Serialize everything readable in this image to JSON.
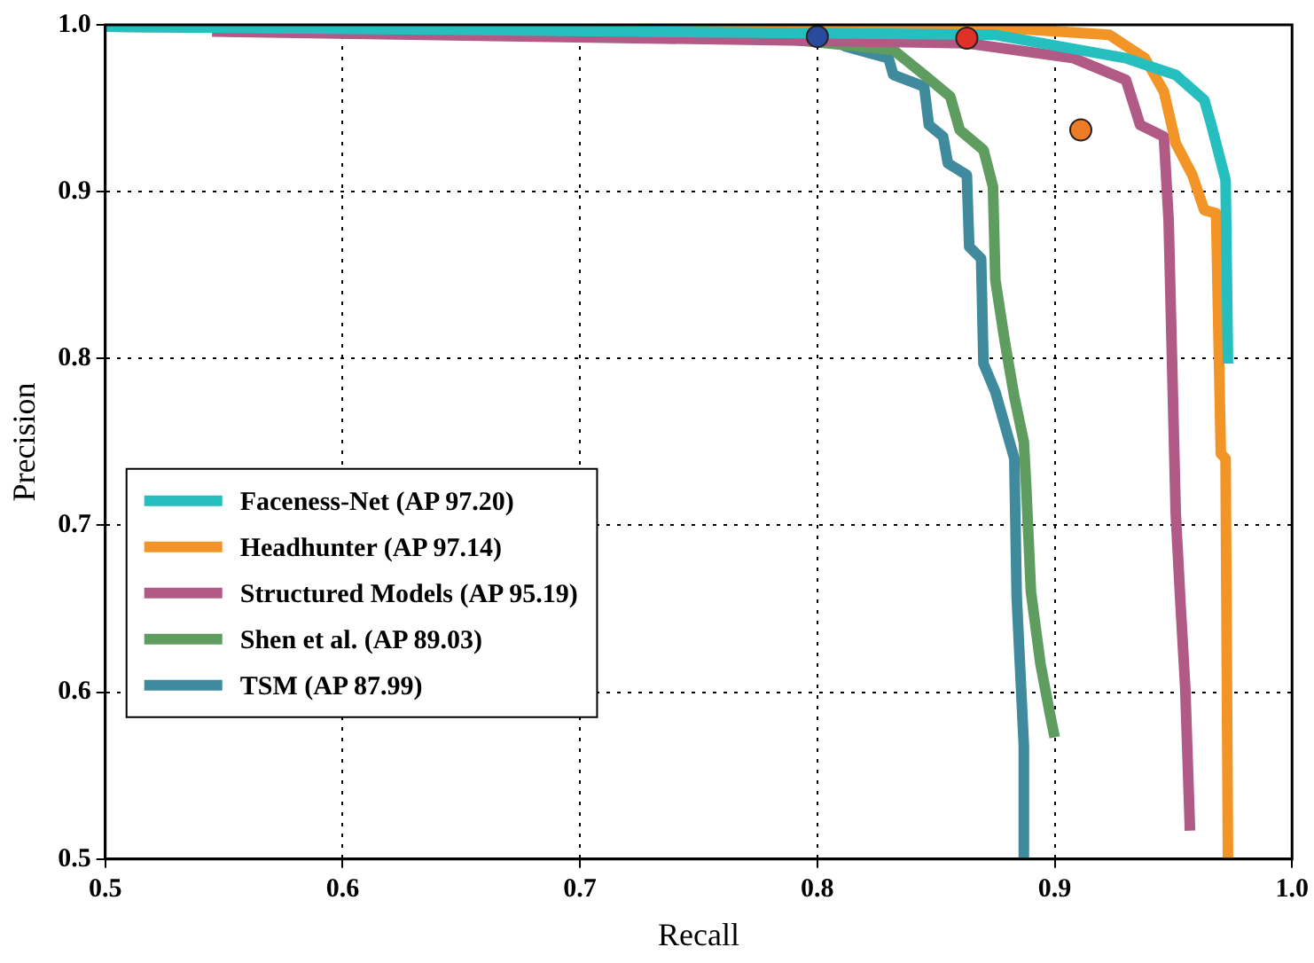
{
  "chart_data": {
    "type": "line",
    "xlabel": "Recall",
    "ylabel": "Precision",
    "xlim": [
      0.5,
      1.0
    ],
    "ylim": [
      0.5,
      1.0
    ],
    "xticks": [
      0.5,
      0.6,
      0.7,
      0.8,
      0.9,
      {
        "value": 1.0,
        "label": "1.0"
      }
    ],
    "yticks": [
      0.5,
      0.6,
      0.7,
      0.8,
      0.9,
      {
        "value": 1.0,
        "label": "1.0"
      }
    ],
    "grid": true,
    "legend": "bottom left",
    "line_style": "solid",
    "series": [
      {
        "name": "Faceness-Net (AP 97.20)",
        "color": "#25bfbf",
        "x": [
          0.5,
          0.875,
          0.93,
          0.951,
          0.963,
          0.966,
          0.972,
          0.973
        ],
        "values": [
          0.999,
          0.994,
          0.98,
          0.97,
          0.955,
          0.94,
          0.907,
          0.797
        ]
      },
      {
        "name": "Headhunter (AP 97.14)",
        "color": "#f39426",
        "x": [
          0.5,
          0.88,
          0.923,
          0.938,
          0.946,
          0.951,
          0.958,
          0.963,
          0.968,
          0.97,
          0.972,
          0.973
        ],
        "values": [
          0.999,
          0.998,
          0.994,
          0.98,
          0.96,
          0.929,
          0.91,
          0.889,
          0.887,
          0.743,
          0.74,
          0.5
        ]
      },
      {
        "name": "Structured Models (AP 95.19)",
        "color": "#b05a85",
        "x": [
          0.545,
          0.863,
          0.908,
          0.93,
          0.936,
          0.946,
          0.948,
          0.951,
          0.953,
          0.955,
          0.957
        ],
        "values": [
          0.996,
          0.989,
          0.98,
          0.967,
          0.94,
          0.933,
          0.883,
          0.707,
          0.653,
          0.603,
          0.517
        ]
      },
      {
        "name": "Shen et al. (AP 89.03)",
        "color": "#5f9c5f",
        "x": [
          0.5,
          0.755,
          0.832,
          0.845,
          0.856,
          0.86,
          0.87,
          0.874,
          0.875,
          0.879,
          0.883,
          0.887,
          0.888,
          0.89,
          0.894,
          0.898,
          0.9
        ],
        "values": [
          0.999,
          0.996,
          0.985,
          0.97,
          0.957,
          0.937,
          0.925,
          0.903,
          0.847,
          0.81,
          0.777,
          0.75,
          0.723,
          0.66,
          0.617,
          0.587,
          0.573
        ]
      },
      {
        "name": "TSM (AP 87.99)",
        "color": "#3f8a9c",
        "x": [
          0.5,
          0.8,
          0.812,
          0.83,
          0.832,
          0.845,
          0.847,
          0.853,
          0.855,
          0.863,
          0.864,
          0.869,
          0.87,
          0.875,
          0.881,
          0.883,
          0.884,
          0.887,
          0.887
        ],
        "values": [
          0.999,
          0.997,
          0.987,
          0.98,
          0.97,
          0.963,
          0.94,
          0.933,
          0.917,
          0.91,
          0.867,
          0.86,
          0.797,
          0.78,
          0.75,
          0.74,
          0.657,
          0.568,
          0.5
        ]
      },
      {
        "type": "scatter",
        "color": "#2a4a9e",
        "marker": "circle",
        "x": [
          0.8
        ],
        "values": [
          0.993
        ]
      },
      {
        "type": "scatter",
        "color": "#ec7c26",
        "marker": "circle",
        "x": [
          0.911
        ],
        "values": [
          0.937
        ]
      },
      {
        "type": "scatter",
        "color": "#e0302a",
        "marker": "circle",
        "x": [
          0.863
        ],
        "values": [
          0.992
        ]
      }
    ]
  }
}
